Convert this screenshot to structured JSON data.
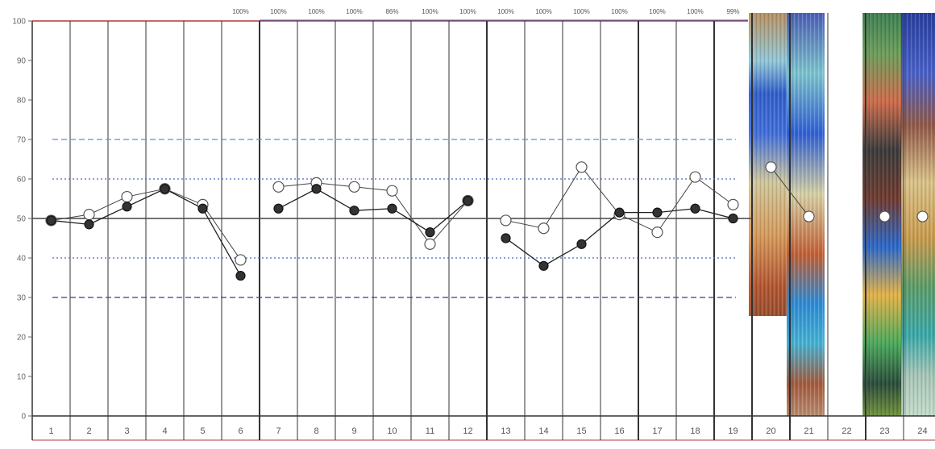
{
  "chart_data": {
    "type": "line",
    "title": "",
    "xlabel": "",
    "ylabel": "",
    "ylim": [
      0,
      100
    ],
    "yticks": [
      0,
      10,
      20,
      30,
      40,
      50,
      60,
      70,
      80,
      90,
      100
    ],
    "categories": [
      "1",
      "2",
      "3",
      "4",
      "5",
      "6",
      "7",
      "8",
      "9",
      "10",
      "11",
      "12",
      "13",
      "14",
      "15",
      "16",
      "17",
      "18",
      "19",
      "20",
      "21",
      "22",
      "23",
      "24"
    ],
    "column_percent_labels": [
      "",
      "",
      "",
      "",
      "",
      "100%",
      "100%",
      "100%",
      "100%",
      "86%",
      "100%",
      "100%",
      "100%",
      "100%",
      "100%",
      "100%",
      "100%",
      "100%",
      "99%",
      "",
      "",
      "",
      "",
      ""
    ],
    "reference_lines": [
      {
        "value": 70,
        "style": "dashed",
        "color": "#5a8fd6"
      },
      {
        "value": 60,
        "style": "dotted",
        "color": "#4a67c8"
      },
      {
        "value": 50,
        "style": "solid",
        "color": "#444444"
      },
      {
        "value": 40,
        "style": "dotted",
        "color": "#4a67c8"
      },
      {
        "value": 30,
        "style": "dashed",
        "color": "#2c3ca0"
      }
    ],
    "series": [
      {
        "marker": "open",
        "segments": [
          {
            "x": [
              1,
              2,
              3,
              4,
              5,
              6
            ],
            "y": [
              49.5,
              51,
              55.5,
              57.5,
              53.5,
              39.5
            ]
          },
          {
            "x": [
              7,
              8,
              9,
              10,
              11,
              12
            ],
            "y": [
              58,
              59,
              58,
              57,
              43.5,
              54.5
            ]
          },
          {
            "x": [
              13,
              14,
              15,
              16,
              17,
              18,
              19
            ],
            "y": [
              49.5,
              47.5,
              63,
              51,
              46.5,
              60.5,
              53.5
            ]
          },
          {
            "x": [
              20,
              21
            ],
            "y": [
              63,
              50.5
            ]
          },
          {
            "x": [
              23
            ],
            "y": [
              50.5
            ]
          },
          {
            "x": [
              24
            ],
            "y": [
              50.5
            ]
          }
        ]
      },
      {
        "marker": "filled",
        "segments": [
          {
            "x": [
              1,
              2,
              3,
              4,
              5,
              6
            ],
            "y": [
              49.5,
              48.5,
              53,
              57.5,
              52.5,
              35.5
            ]
          },
          {
            "x": [
              7,
              8,
              9,
              10,
              11,
              12
            ],
            "y": [
              52.5,
              57.5,
              52,
              52.5,
              46.5,
              54.5
            ]
          },
          {
            "x": [
              13,
              14,
              15,
              16,
              17,
              18,
              19
            ],
            "y": [
              45,
              38,
              43.5,
              51.5,
              51.5,
              52.5,
              50
            ]
          }
        ]
      }
    ],
    "grid": false,
    "legend": "none"
  }
}
